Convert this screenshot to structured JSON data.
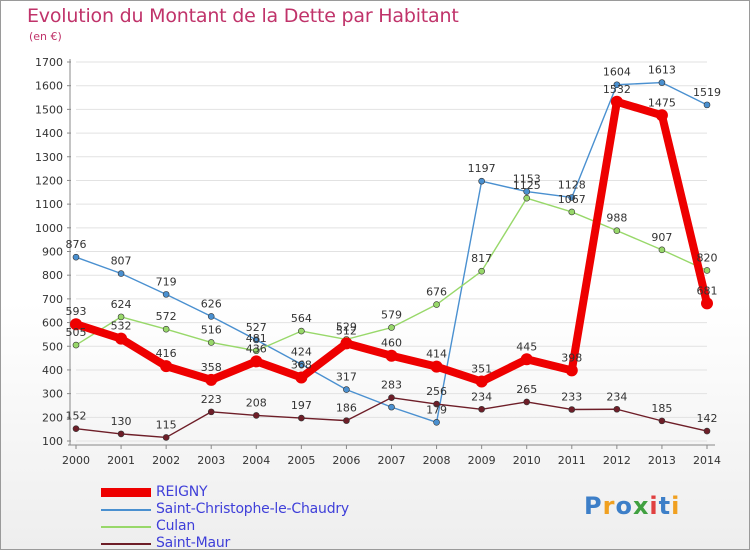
{
  "header": {
    "title": "Evolution du Montant de la Dette par Habitant",
    "subtitle": "(en €)"
  },
  "logo": {
    "text": "Proxiti",
    "colors": [
      "#3d7fc8",
      "#f0a020",
      "#3d7fc8",
      "#40a040",
      "#e04040",
      "#3d7fc8",
      "#f0a020"
    ]
  },
  "chart_data": {
    "type": "line",
    "x": [
      2000,
      2001,
      2002,
      2003,
      2004,
      2005,
      2006,
      2007,
      2008,
      2009,
      2010,
      2011,
      2012,
      2013,
      2014
    ],
    "ylim": [
      100,
      1700
    ],
    "yticks": [
      100,
      200,
      300,
      400,
      500,
      600,
      700,
      800,
      900,
      1000,
      1100,
      1200,
      1300,
      1400,
      1500,
      1600,
      1700
    ],
    "grid": "horizontal",
    "legend_position": "bottom-left",
    "series": [
      {
        "name": "Saint-Christophe-le-Chaudry",
        "color": "#4a90d0",
        "values": [
          876,
          807,
          719,
          626,
          527,
          424,
          317,
          243,
          179,
          1197,
          1153,
          1128,
          1604,
          1613,
          1519
        ],
        "labels": [
          "876",
          "807",
          "719",
          "626",
          "527",
          "424",
          "317",
          "",
          "179",
          "1197",
          "1153",
          "1128",
          "1604",
          "1613",
          "1519"
        ]
      },
      {
        "name": "Culan",
        "color": "#98d86a",
        "values": [
          505,
          624,
          572,
          516,
          481,
          564,
          529,
          579,
          676,
          817,
          1125,
          1067,
          988,
          907,
          820
        ],
        "labels": [
          "505",
          "624",
          "572",
          "516",
          "481",
          "564",
          "529",
          "579",
          "676",
          "817",
          "1125",
          "1067",
          "988",
          "907",
          "820"
        ]
      },
      {
        "name": "Saint-Maur",
        "color": "#6e1e28",
        "values": [
          152,
          130,
          115,
          223,
          208,
          197,
          186,
          283,
          256,
          234,
          265,
          233,
          234,
          185,
          142
        ],
        "labels": [
          "152",
          "130",
          "115",
          "223",
          "208",
          "197",
          "186",
          "283",
          "256",
          "234",
          "265",
          "233",
          "234",
          "185",
          "142"
        ]
      },
      {
        "name": "REIGNY",
        "color": "#ee0000",
        "values": [
          593,
          532,
          416,
          358,
          436,
          368,
          512,
          460,
          414,
          351,
          445,
          398,
          1532,
          1475,
          681
        ],
        "labels": [
          "593",
          "532",
          "416",
          "358",
          "436",
          "368",
          "512",
          "460",
          "414",
          "351",
          "445",
          "398",
          "1532",
          "1475",
          "681"
        ]
      }
    ]
  },
  "legend": {
    "items": [
      {
        "label": "REIGNY",
        "color": "#ee0000"
      },
      {
        "label": "Saint-Christophe-le-Chaudry",
        "color": "#4a90d0"
      },
      {
        "label": "Culan",
        "color": "#98d86a"
      },
      {
        "label": "Saint-Maur",
        "color": "#6e1e28"
      }
    ]
  }
}
